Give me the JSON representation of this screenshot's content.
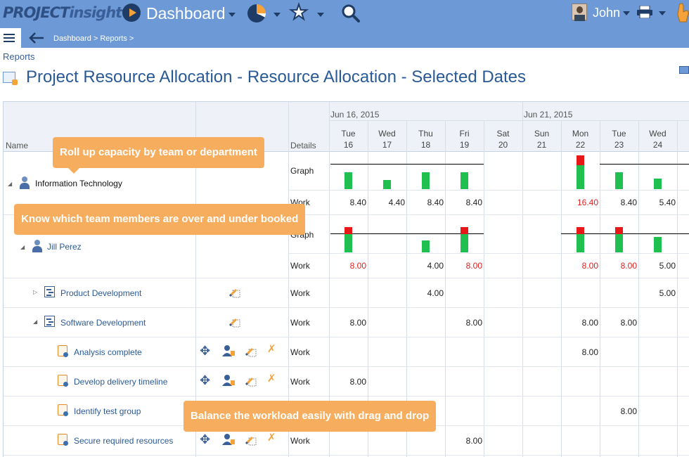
{
  "topbar": {
    "logo": {
      "part1": "PROJECT",
      "part2": "insight"
    },
    "dashboard_label": "Dashboard",
    "user_name": "John"
  },
  "navbar": {
    "breadcrumb": "Dashboard > Reports >"
  },
  "page": {
    "section": "Reports",
    "title": "Project Resource Allocation - Resource Allocation - Selected Dates"
  },
  "grid": {
    "col_name": "Name",
    "col_details": "Details",
    "weeks": [
      "Jun 16, 2015",
      "Jun 21, 2015"
    ],
    "days": [
      {
        "name": "Tue",
        "num": "16"
      },
      {
        "name": "Wed",
        "num": "17"
      },
      {
        "name": "Thu",
        "num": "18"
      },
      {
        "name": "Fri",
        "num": "19"
      },
      {
        "name": "Sat",
        "num": "20"
      },
      {
        "name": "Sun",
        "num": "21"
      },
      {
        "name": "Mon",
        "num": "22"
      },
      {
        "name": "Tue",
        "num": "23"
      },
      {
        "name": "Wed",
        "num": "24"
      }
    ],
    "rows": {
      "it_name": "Information Technology",
      "jill_name": "Jill Perez",
      "graph_label": "Graph",
      "work_label": "Work",
      "it_work": [
        "8.40",
        "4.40",
        "8.40",
        "8.40",
        "",
        "",
        "16.40",
        "8.40",
        "5.40"
      ],
      "jill_work": [
        "8.00",
        "",
        "4.00",
        "8.00",
        "",
        "",
        "8.00",
        "8.00",
        "5.00"
      ],
      "product_dev_name": "Product Development",
      "product_dev_work": [
        "",
        "",
        "4.00",
        "",
        "",
        "",
        "",
        "",
        "5.00"
      ],
      "software_dev_name": "Software Development",
      "software_dev_work": [
        "8.00",
        "",
        "",
        "8.00",
        "",
        "",
        "8.00",
        "8.00",
        ""
      ],
      "task1_name": "Analysis complete",
      "task1_work": [
        "",
        "",
        "",
        "",
        "",
        "",
        "8.00",
        "",
        ""
      ],
      "task2_name": "Develop delivery timeline",
      "task2_work": [
        "8.00",
        "",
        "",
        "",
        "",
        "",
        "",
        "",
        ""
      ],
      "task3_name": "Identify test group",
      "task3_work": [
        "",
        "",
        "",
        "",
        "",
        "",
        "",
        "8.00",
        ""
      ],
      "task4_name": "Secure required resources",
      "task4_work": [
        "",
        "",
        "",
        "8.00",
        "",
        "",
        "",
        "",
        ""
      ]
    }
  },
  "callouts": {
    "c1": "Roll up capacity by team or department",
    "c2": "Know which team members are over and under booked",
    "c3": "Balance the workload easily with drag and drop"
  },
  "colors": {
    "header_blue": "#6d9ad6",
    "accent_orange": "#f6a23a",
    "callout_orange": "#f7ad5e",
    "bar_green": "#20c050",
    "bar_red": "#e81818",
    "overbooked_text": "#e02020"
  }
}
